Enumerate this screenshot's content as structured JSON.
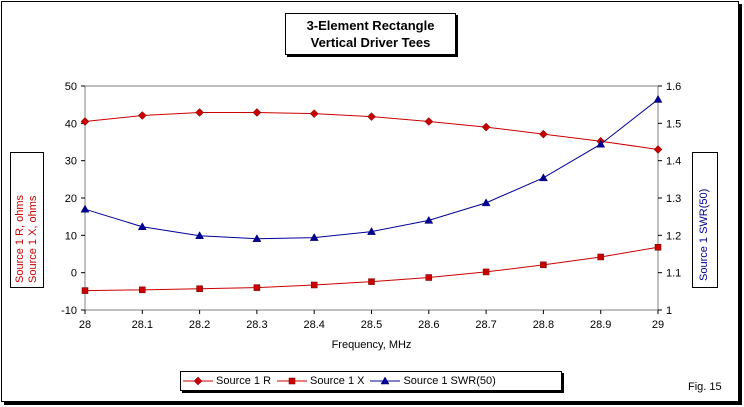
{
  "figure_label": "Fig. 15",
  "colors": {
    "r_series": "#cc0000",
    "x_series": "#cc0000",
    "swr_series": "#000099",
    "left_axis_text": "#cc0000",
    "right_axis_text": "#000099"
  },
  "chart_data": {
    "type": "line",
    "title_line1": "3-Element Rectangle",
    "title_line2": "Vertical Driver Tees",
    "xlabel": "Frequency, MHz",
    "ylabel_left_line1": "Source 1 R,  ohms",
    "ylabel_left_line2": "Source 1 X,  ohms",
    "ylabel_right": "Source 1 SWR(50)",
    "x": [
      28,
      28.1,
      28.2,
      28.3,
      28.4,
      28.5,
      28.6,
      28.7,
      28.8,
      28.9,
      29
    ],
    "x_ticks": [
      "28",
      "28.1",
      "28.2",
      "28.3",
      "28.4",
      "28.5",
      "28.6",
      "28.7",
      "28.8",
      "28.9",
      "29"
    ],
    "ylim_left": [
      -10,
      50
    ],
    "y_left_ticks": [
      "50",
      "40",
      "30",
      "20",
      "10",
      "0",
      "-10"
    ],
    "ylim_right": [
      1,
      1.6
    ],
    "y_right_ticks": [
      "1.6",
      "1.5",
      "1.4",
      "1.3",
      "1.2",
      "1.1",
      "1"
    ],
    "grid": false,
    "legend_position": "bottom",
    "series": [
      {
        "name": "Source 1 R",
        "axis": "left",
        "marker": "diamond",
        "values": [
          40.5,
          42.1,
          42.9,
          42.9,
          42.6,
          41.8,
          40.5,
          39.0,
          37.1,
          35.2,
          33.0
        ]
      },
      {
        "name": "Source 1 X",
        "axis": "left",
        "marker": "square",
        "values": [
          -4.8,
          -4.6,
          -4.3,
          -4.0,
          -3.3,
          -2.4,
          -1.3,
          0.2,
          2.1,
          4.2,
          6.8
        ]
      },
      {
        "name": "Source 1 SWR(50)",
        "axis": "right",
        "marker": "triangle",
        "values": [
          1.27,
          1.223,
          1.199,
          1.191,
          1.194,
          1.21,
          1.24,
          1.287,
          1.354,
          1.444,
          1.564
        ]
      }
    ]
  }
}
